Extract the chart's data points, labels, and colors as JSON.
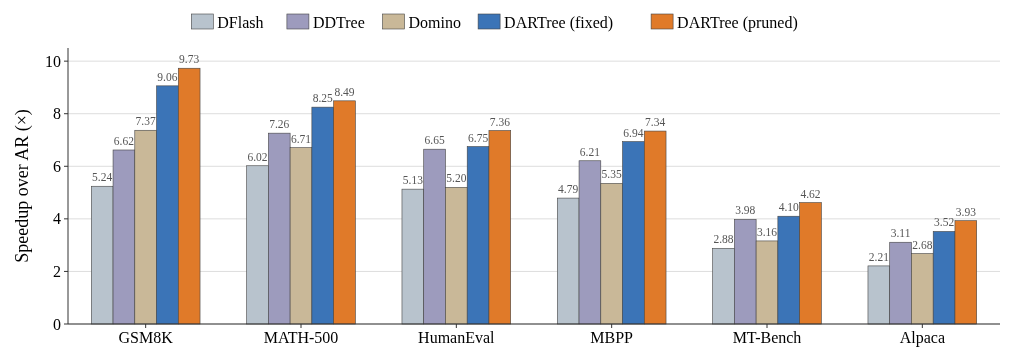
{
  "chart_data": {
    "type": "bar",
    "ylabel": "Speedup over AR (×)",
    "categories": [
      "GSM8K",
      "MATH-500",
      "HumanEval",
      "MBPP",
      "MT-Bench",
      "Alpaca"
    ],
    "series": [
      {
        "name": "DFlash",
        "color": "#b8c3cd",
        "values": [
          5.24,
          6.02,
          5.13,
          4.79,
          2.88,
          2.21
        ],
        "value_labels": [
          "5.24",
          "6.02",
          "5.13",
          "4.79",
          "2.88",
          "2.21"
        ]
      },
      {
        "name": "DDTree",
        "color": "#9d9bbd",
        "values": [
          6.62,
          7.26,
          6.65,
          6.21,
          3.98,
          3.11
        ],
        "value_labels": [
          "6.62",
          "7.26",
          "6.65",
          "6.21",
          "3.98",
          "3.11"
        ]
      },
      {
        "name": "Domino",
        "color": "#c9b898",
        "values": [
          7.37,
          6.71,
          5.2,
          5.35,
          3.16,
          2.68
        ],
        "value_labels": [
          "7.37",
          "6.71",
          "5.20",
          "5.35",
          "3.16",
          "2.68"
        ]
      },
      {
        "name": "DARTree (fixed)",
        "color": "#3b74b7",
        "values": [
          9.06,
          8.25,
          6.75,
          6.94,
          4.1,
          3.52
        ],
        "value_labels": [
          "9.06",
          "8.25",
          "6.75",
          "6.94",
          "4.10",
          "3.52"
        ]
      },
      {
        "name": "DARTree (pruned)",
        "color": "#e07a29",
        "values": [
          9.73,
          8.49,
          7.36,
          7.34,
          4.62,
          3.93
        ],
        "value_labels": [
          "9.73",
          "8.49",
          "7.36",
          "7.34",
          "4.62",
          "3.93"
        ]
      }
    ],
    "ylim": [
      0,
      10.5
    ],
    "yticks": [
      0,
      2,
      4,
      6,
      8,
      10
    ],
    "grid": "y",
    "legend": "top"
  }
}
